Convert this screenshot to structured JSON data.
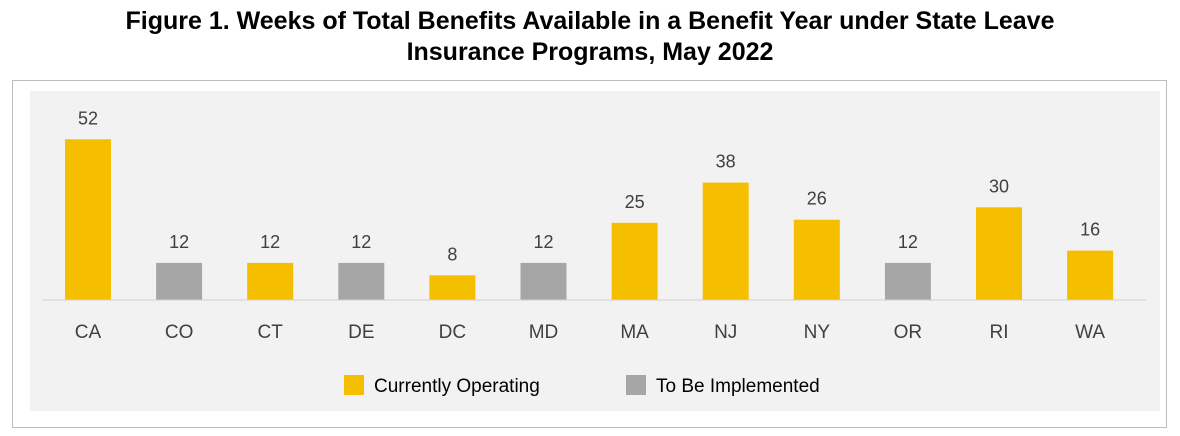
{
  "title": {
    "line1": "Figure 1. Weeks of Total Benefits Available in a Benefit Year under State Leave",
    "line2": "Insurance Programs, May 2022"
  },
  "colors": {
    "Currently Operating": "#f5bf00",
    "To Be Implemented": "#a6a6a6",
    "plot_background": "#f2f2f2",
    "label_text": "#404040"
  },
  "chart_data": {
    "type": "bar",
    "title": "Figure 1. Weeks of Total Benefits Available in a Benefit Year under State Leave Insurance Programs, May 2022",
    "xlabel": "",
    "ylabel": "",
    "categories": [
      "CA",
      "CO",
      "CT",
      "DE",
      "DC",
      "MD",
      "MA",
      "NJ",
      "NY",
      "OR",
      "RI",
      "WA"
    ],
    "values": [
      52,
      12,
      12,
      12,
      8,
      12,
      25,
      38,
      26,
      12,
      30,
      16
    ],
    "status": [
      "Currently Operating",
      "To Be Implemented",
      "Currently Operating",
      "To Be Implemented",
      "Currently Operating",
      "To Be Implemented",
      "Currently Operating",
      "Currently Operating",
      "Currently Operating",
      "To Be Implemented",
      "Currently Operating",
      "Currently Operating"
    ],
    "ylim": [
      0,
      60
    ],
    "grid": false,
    "data_labels": true,
    "legend": {
      "placement": "bottom-center",
      "entries": [
        "Currently Operating",
        "To Be Implemented"
      ]
    }
  }
}
